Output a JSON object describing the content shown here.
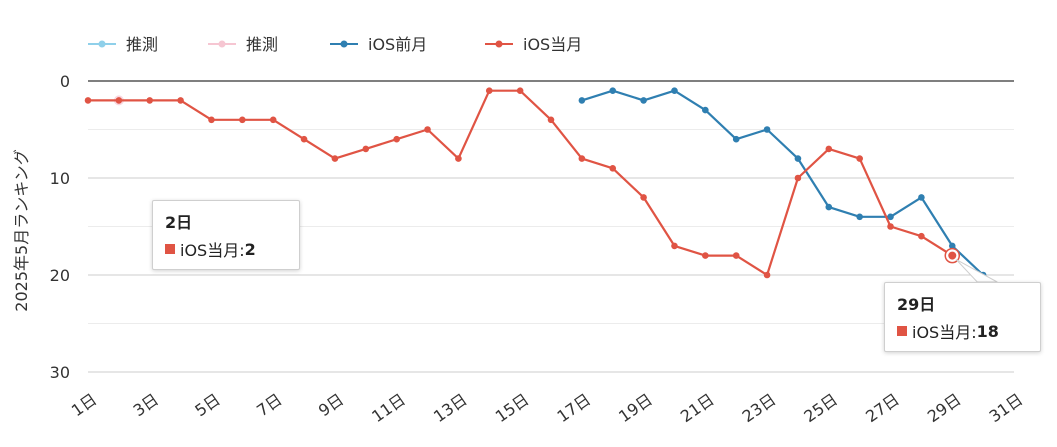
{
  "chart_data": {
    "type": "line",
    "ylabel": "2025年5月ランキング",
    "xlabel": "",
    "ylim": [
      0,
      30
    ],
    "y_inverted": true,
    "y_ticks": [
      0,
      10,
      20,
      30
    ],
    "x_ticks": [
      1,
      3,
      5,
      7,
      9,
      11,
      13,
      15,
      17,
      19,
      21,
      23,
      25,
      27,
      29,
      31
    ],
    "x_tick_suffix": "日",
    "xlim": [
      1,
      31
    ],
    "grid": true,
    "legend_position": "top-left",
    "series": [
      {
        "name": "推測",
        "color": "#8fd0ea",
        "x": [],
        "values": []
      },
      {
        "name": "推測",
        "color": "#f6c6d2",
        "x": [
          2
        ],
        "values": [
          2
        ]
      },
      {
        "name": "iOS前月",
        "color": "#2f7fb1",
        "x": [
          17,
          18,
          19,
          20,
          21,
          22,
          23,
          24,
          25,
          26,
          27,
          28,
          29,
          30
        ],
        "values": [
          2,
          1,
          2,
          1,
          3,
          6,
          5,
          8,
          13,
          14,
          14,
          12,
          17,
          20
        ]
      },
      {
        "name": "iOS当月",
        "color": "#e05444",
        "x": [
          1,
          2,
          3,
          4,
          5,
          6,
          7,
          8,
          9,
          10,
          11,
          12,
          13,
          14,
          15,
          16,
          17,
          18,
          19,
          20,
          21,
          22,
          23,
          24,
          25,
          26,
          27,
          28,
          29
        ],
        "values": [
          2,
          2,
          2,
          2,
          4,
          4,
          4,
          6,
          8,
          7,
          6,
          5,
          8,
          1,
          1,
          4,
          8,
          9,
          12,
          17,
          18,
          18,
          20,
          10,
          7,
          8,
          15,
          16,
          18
        ]
      }
    ]
  },
  "tooltips": [
    {
      "title": "2日",
      "label": "iOS当月: ",
      "value": "2",
      "color": "#e05444"
    },
    {
      "title": "29日",
      "label": "iOS当月: ",
      "value": "18",
      "color": "#e05444"
    }
  ]
}
